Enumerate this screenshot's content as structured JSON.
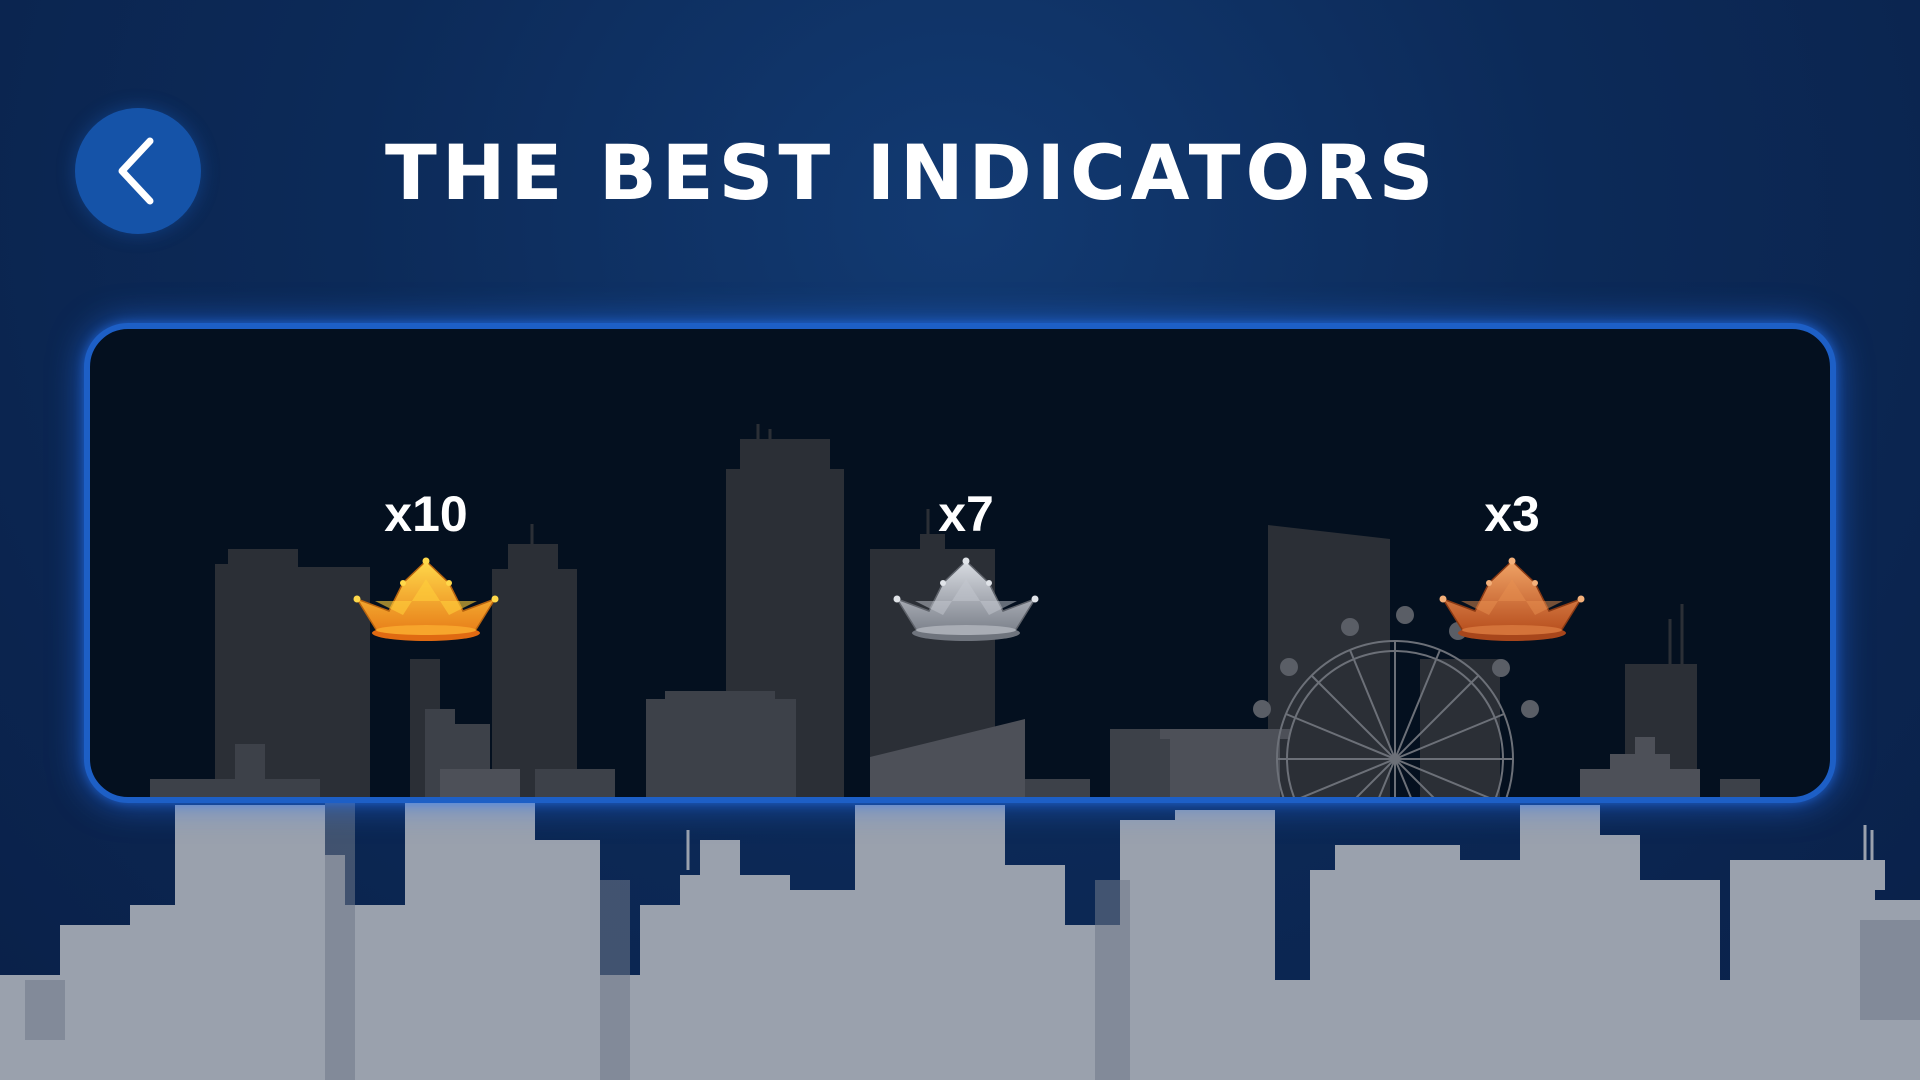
{
  "header": {
    "title": "THE BEST INDICATORS",
    "back_icon": "chevron-left-icon"
  },
  "indicators": [
    {
      "rank": "gold",
      "multiplier": "x10",
      "icon": "crown-gold-icon",
      "color": "#f5a623"
    },
    {
      "rank": "silver",
      "multiplier": "x7",
      "icon": "crown-silver-icon",
      "color": "#a9adb5"
    },
    {
      "rank": "bronze",
      "multiplier": "x3",
      "icon": "crown-bronze-icon",
      "color": "#d4733a"
    }
  ],
  "colors": {
    "background": "#0c2a58",
    "panel_border": "#1d5fc6",
    "panel_fill": "#04101f",
    "back_button": "#1553a8",
    "skyline_foreground": "#9aa1ad"
  }
}
